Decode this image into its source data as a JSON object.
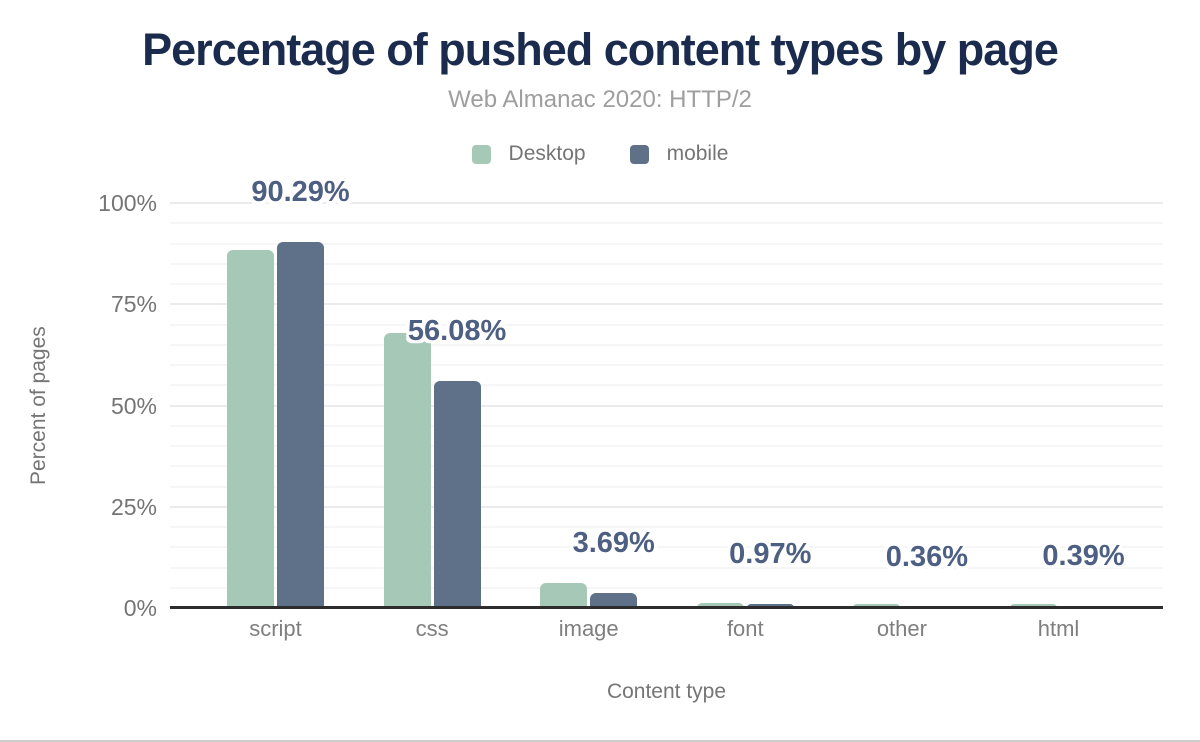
{
  "title": "Percentage of pushed content types by page",
  "subtitle": "Web Almanac 2020: HTTP/2",
  "legend": [
    {
      "label": "Desktop",
      "color": "#a6c9b7"
    },
    {
      "label": "mobile",
      "color": "#5f7089"
    }
  ],
  "colors": {
    "title": "#1b2b4e",
    "subtitle": "#9e9e9e",
    "axis_text": "#757575",
    "data_label": "#4d5f82",
    "desktop_bar": "#a6c9b7",
    "mobile_bar": "#5f7089",
    "axis_line": "#2d2d2d",
    "gridline_major": "#ebebed",
    "gridline_minor": "#f6f6f7"
  },
  "chart_data": {
    "type": "bar",
    "title": "Percentage of pushed content types by page",
    "subtitle": "Web Almanac 2020: HTTP/2",
    "categories": [
      "script",
      "css",
      "image",
      "font",
      "other",
      "html"
    ],
    "series": [
      {
        "name": "Desktop",
        "color": "#a6c9b7",
        "values": [
          88.4,
          67.9,
          6.1,
          1.2,
          0.9,
          0.9
        ]
      },
      {
        "name": "mobile",
        "color": "#5f7089",
        "values": [
          90.29,
          56.08,
          3.69,
          0.97,
          0.36,
          0.39
        ]
      }
    ],
    "data_labels": [
      "90.29%",
      "56.08%",
      "3.69%",
      "0.97%",
      "0.36%",
      "0.39%"
    ],
    "data_labels_series": "mobile",
    "xlabel": "Content type",
    "ylabel": "Percent of pages",
    "yticks": [
      {
        "value": 0,
        "label": "0%"
      },
      {
        "value": 25,
        "label": "25%"
      },
      {
        "value": 50,
        "label": "50%"
      },
      {
        "value": 75,
        "label": "75%"
      },
      {
        "value": 100,
        "label": "100%"
      }
    ],
    "ylim": [
      0,
      100
    ],
    "grid": {
      "minor_step": 5,
      "major_step": 25,
      "grid_on": true
    },
    "legend_position": "top-center"
  }
}
